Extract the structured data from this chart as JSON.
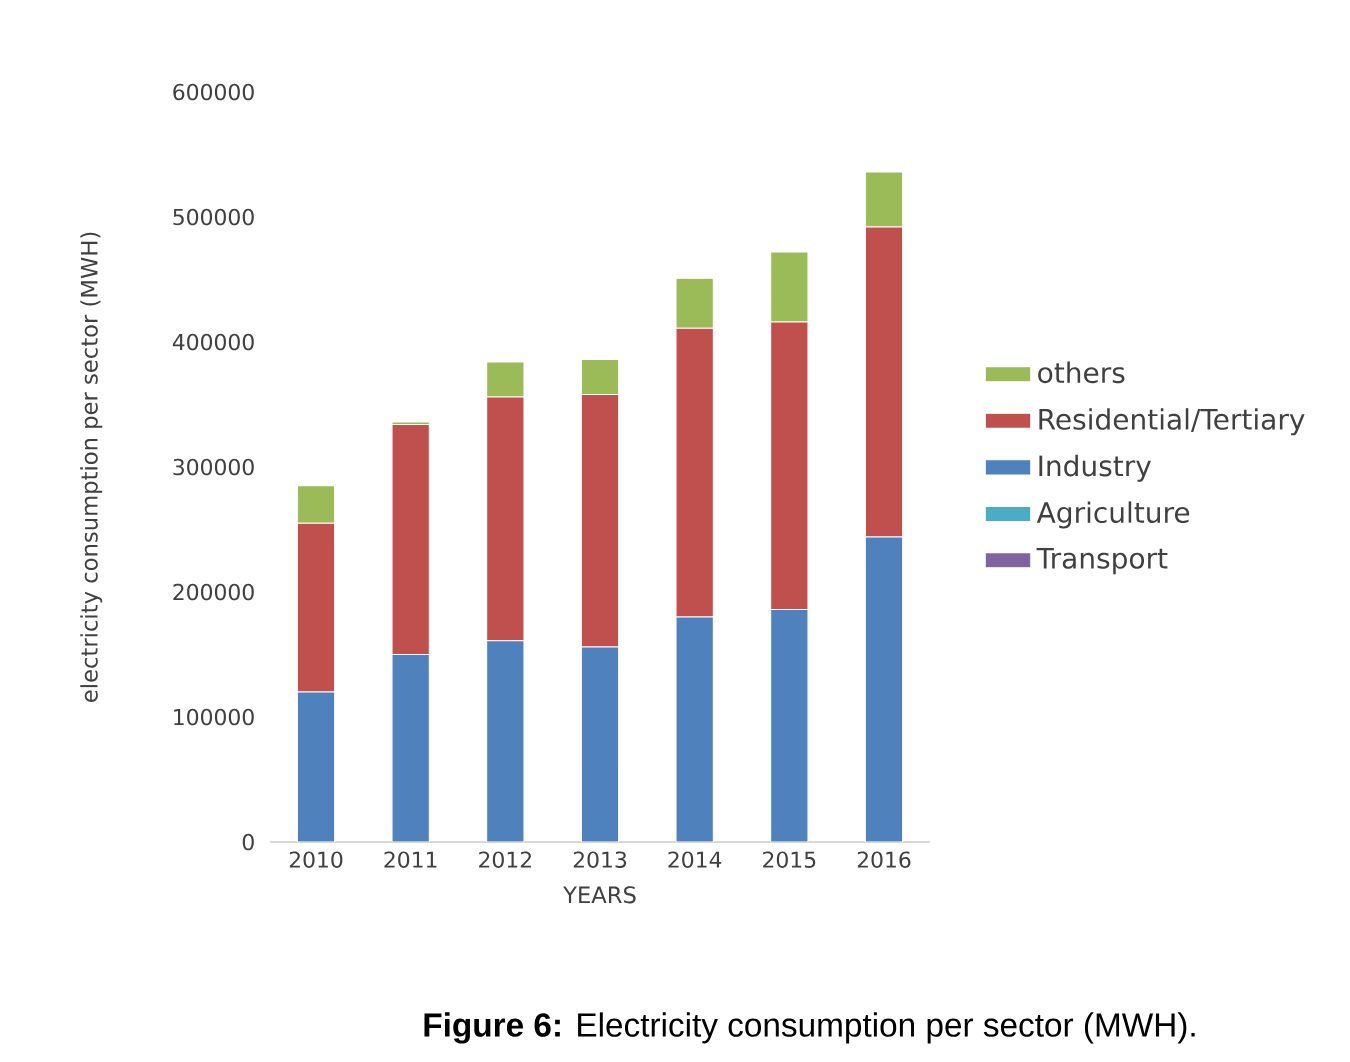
{
  "chart_data": {
    "type": "bar",
    "stacked": true,
    "xlabel": "YEARS",
    "ylabel": "electricity consumption per sector (MWH)",
    "annotations": [
      "**Figure 6:** Electricity consumption per sector (MWH)."
    ],
    "categories": [
      "2010",
      "2011",
      "2012",
      "2013",
      "2014",
      "2015",
      "2016"
    ],
    "series": [
      {
        "name": "Transport",
        "color": "#8064a2",
        "values": [
          0,
          0,
          0,
          0,
          0,
          0,
          0
        ]
      },
      {
        "name": "Agriculture",
        "color": "#4bacc6",
        "values": [
          0,
          0,
          0,
          0,
          0,
          0,
          0
        ]
      },
      {
        "name": "Industry",
        "color": "#4f81bd",
        "values": [
          120000,
          150000,
          161000,
          156000,
          180000,
          186000,
          244000
        ]
      },
      {
        "name": "Residential/Tertiary",
        "color": "#c0504d",
        "values": [
          135000,
          184000,
          195000,
          202000,
          231000,
          230000,
          248000
        ]
      },
      {
        "name": "others",
        "color": "#9bbb59",
        "values": [
          30000,
          2000,
          28000,
          28000,
          40000,
          56000,
          44000
        ]
      }
    ],
    "ylim": [
      0,
      600000
    ],
    "yticks": [
      0,
      100000,
      200000,
      300000,
      400000,
      500000,
      600000
    ],
    "legend": "right"
  }
}
